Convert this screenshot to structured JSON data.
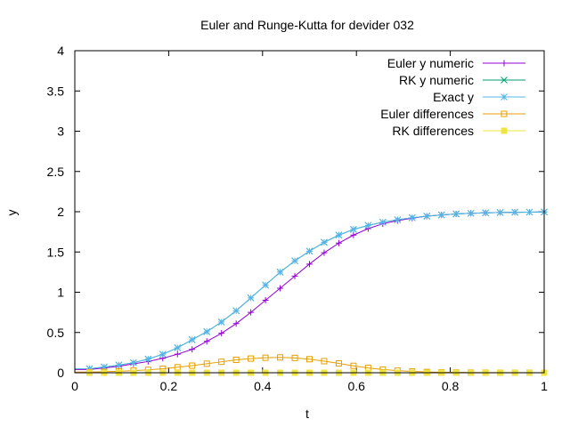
{
  "chart_data": {
    "type": "line",
    "title": "Euler and Runge-Kutta for devider 032",
    "xlabel": "t",
    "ylabel": "y",
    "xlim": [
      0,
      1
    ],
    "ylim": [
      0,
      4
    ],
    "x_ticks": [
      "0",
      "0.2",
      "0.4",
      "0.6",
      "0.8",
      "1"
    ],
    "y_ticks": [
      "0",
      "0.5",
      "1",
      "1.5",
      "2",
      "2.5",
      "3",
      "3.5",
      "4"
    ],
    "grid": false,
    "legend_position": "top-right",
    "x": [
      0.03125,
      0.0625,
      0.09375,
      0.125,
      0.15625,
      0.1875,
      0.21875,
      0.25,
      0.28125,
      0.3125,
      0.34375,
      0.375,
      0.40625,
      0.4375,
      0.46875,
      0.5,
      0.53125,
      0.5625,
      0.59375,
      0.625,
      0.65625,
      0.6875,
      0.71875,
      0.75,
      0.78125,
      0.8125,
      0.84375,
      0.875,
      0.90625,
      0.9375,
      0.96875,
      1.0
    ],
    "series": [
      {
        "name": "Euler y numeric",
        "color": "#9400d3",
        "marker": "plus",
        "values": [
          0.04,
          0.06,
          0.08,
          0.11,
          0.14,
          0.18,
          0.23,
          0.29,
          0.39,
          0.49,
          0.61,
          0.75,
          0.9,
          1.05,
          1.2,
          1.35,
          1.49,
          1.61,
          1.71,
          1.79,
          1.85,
          1.89,
          1.92,
          1.945,
          1.96,
          1.972,
          1.98,
          1.986,
          1.99,
          1.993,
          1.995,
          1.997
        ]
      },
      {
        "name": "RK y numeric",
        "color": "#009e73",
        "marker": "x",
        "values": [
          0.05,
          0.07,
          0.095,
          0.125,
          0.17,
          0.23,
          0.31,
          0.41,
          0.51,
          0.63,
          0.77,
          0.93,
          1.09,
          1.25,
          1.39,
          1.51,
          1.62,
          1.71,
          1.78,
          1.83,
          1.87,
          1.9,
          1.925,
          1.945,
          1.96,
          1.972,
          1.98,
          1.986,
          1.99,
          1.993,
          1.995,
          1.997
        ]
      },
      {
        "name": "Exact y",
        "color": "#56b4e9",
        "marker": "star",
        "values": [
          0.05,
          0.07,
          0.095,
          0.125,
          0.17,
          0.23,
          0.31,
          0.41,
          0.51,
          0.63,
          0.77,
          0.93,
          1.09,
          1.25,
          1.39,
          1.51,
          1.62,
          1.71,
          1.78,
          1.83,
          1.87,
          1.9,
          1.925,
          1.945,
          1.96,
          1.972,
          1.98,
          1.986,
          1.99,
          1.993,
          1.995,
          1.997
        ]
      },
      {
        "name": "Euler differences",
        "color": "#e69f00",
        "marker": "open-square",
        "values": [
          0.008,
          0.012,
          0.018,
          0.026,
          0.036,
          0.05,
          0.068,
          0.088,
          0.112,
          0.136,
          0.16,
          0.176,
          0.186,
          0.19,
          0.184,
          0.168,
          0.144,
          0.116,
          0.086,
          0.06,
          0.04,
          0.026,
          0.016,
          0.01,
          0.006,
          0.004,
          0.003,
          0.002,
          0.001,
          0.001,
          0.001,
          0.0
        ]
      },
      {
        "name": "RK differences",
        "color": "#f0e442",
        "marker": "filled-square",
        "values": [
          0.0,
          0.0,
          0.0,
          0.0,
          0.0,
          0.0,
          0.0,
          0.0,
          0.0,
          0.0,
          0.0,
          0.0,
          0.0,
          0.0,
          0.0,
          0.0,
          0.0,
          0.0,
          0.0,
          0.0,
          0.0,
          0.0,
          0.0,
          0.0,
          0.0,
          0.0,
          0.0,
          0.0,
          0.0,
          0.0,
          0.0,
          0.0
        ]
      }
    ]
  }
}
